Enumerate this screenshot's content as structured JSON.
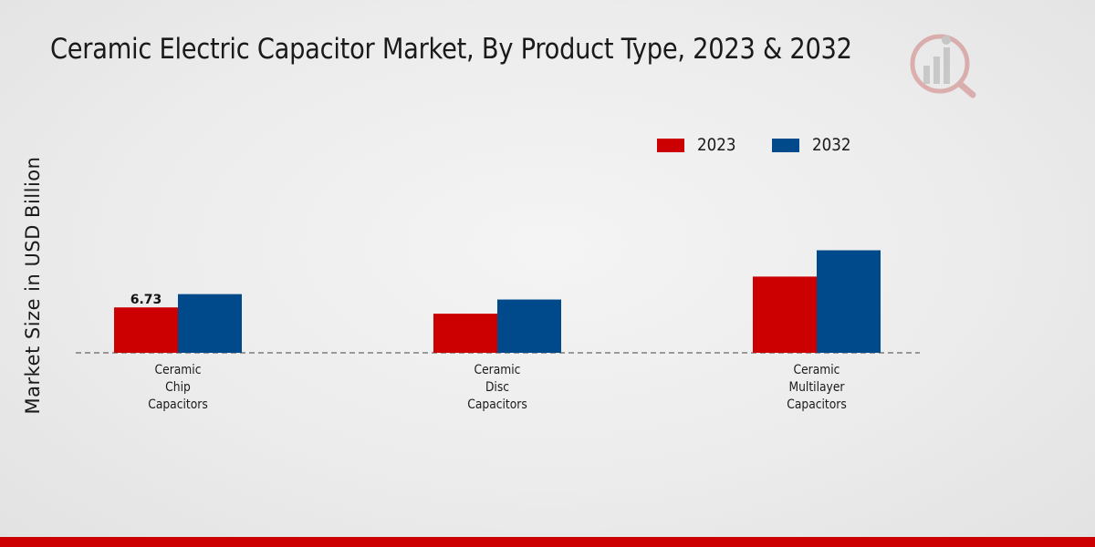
{
  "chart_data": {
    "type": "bar",
    "title": "Ceramic Electric Capacitor Market, By Product Type, 2023 & 2032",
    "ylabel": "Market Size in USD Billion",
    "xlabel": "",
    "categories": [
      [
        "Ceramic",
        "Chip",
        "Capacitors"
      ],
      [
        "Ceramic",
        "Disc",
        "Capacitors"
      ],
      [
        "Ceramic",
        "Multilayer",
        "Capacitors"
      ]
    ],
    "series": [
      {
        "name": "2023",
        "color": "#cc0000",
        "values": [
          6.73,
          5.8,
          11.3
        ]
      },
      {
        "name": "2032",
        "color": "#004a8c",
        "values": [
          8.7,
          7.9,
          15.2
        ]
      }
    ],
    "data_labels": [
      {
        "series": 0,
        "index": 0,
        "text": "6.73"
      }
    ],
    "legend_position": "top-right",
    "grid": false,
    "baseline_style": "dashed"
  },
  "logo": {
    "icon": "analytics-chart-logo-icon"
  }
}
